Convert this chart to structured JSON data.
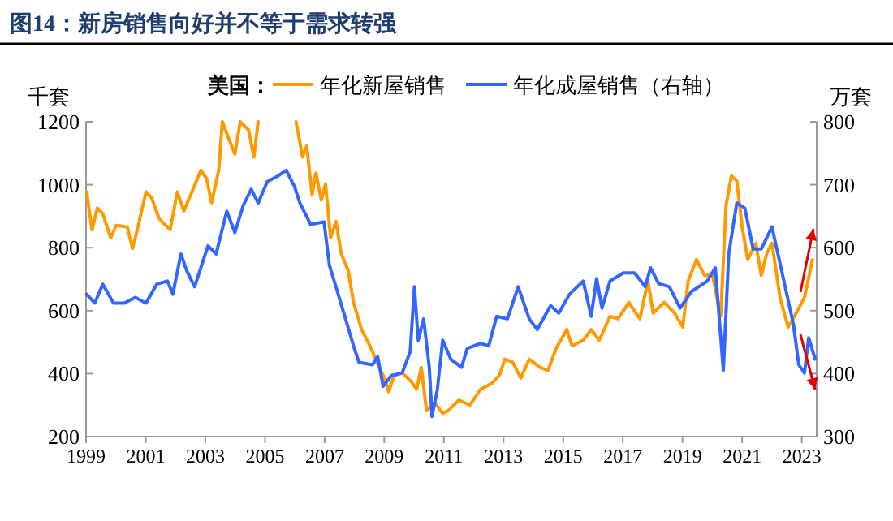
{
  "chart_data": {
    "type": "line",
    "title": "图14：新房销售向好并不等于需求转强",
    "ylabel": "千套",
    "y2label": "万套",
    "legend_title": "美国：",
    "legend": "top",
    "grid": false,
    "xlim": [
      1999,
      2023.5
    ],
    "xticks": [
      1999,
      2001,
      2003,
      2005,
      2007,
      2009,
      2011,
      2013,
      2015,
      2017,
      2019,
      2021,
      2023
    ],
    "ylim": [
      200,
      1200
    ],
    "yticks": [
      200,
      400,
      600,
      800,
      1000,
      1200
    ],
    "y2lim": [
      300,
      800
    ],
    "y2ticks": [
      300,
      400,
      500,
      600,
      700,
      800
    ],
    "series": [
      {
        "name": "年化新屋销售",
        "color": "#ff9900",
        "x": [
          1999.02,
          1999.2,
          1999.38,
          1999.56,
          1999.83,
          2000.01,
          2000.38,
          2000.56,
          2000.74,
          2001.01,
          2001.19,
          2001.46,
          2001.82,
          2002.06,
          2002.28,
          2002.55,
          2002.85,
          2003.04,
          2003.21,
          2003.45,
          2003.57,
          2003.81,
          2003.99,
          2004.17,
          2004.45,
          2004.63,
          2004.77,
          2005.41,
          2006.04,
          2006.26,
          2006.4,
          2006.58,
          2006.71,
          2006.89,
          2007.03,
          2007.2,
          2007.38,
          2007.56,
          2007.79,
          2007.97,
          2008.24,
          2008.52,
          2008.79,
          2009.01,
          2009.15,
          2009.33,
          2009.6,
          2009.88,
          2010.09,
          2010.24,
          2010.42,
          2010.69,
          2010.96,
          2011.14,
          2011.5,
          2011.87,
          2012.23,
          2012.59,
          2012.86,
          2013.04,
          2013.31,
          2013.58,
          2013.86,
          2014.22,
          2014.49,
          2014.76,
          2015.12,
          2015.3,
          2015.67,
          2015.94,
          2016.21,
          2016.57,
          2016.84,
          2017.2,
          2017.57,
          2017.84,
          2018.02,
          2018.38,
          2018.74,
          2019.01,
          2019.19,
          2019.47,
          2019.74,
          2020.01,
          2020.28,
          2020.46,
          2020.64,
          2020.82,
          2021.0,
          2021.19,
          2021.46,
          2021.64,
          2021.82,
          2022.0,
          2022.27,
          2022.54,
          2022.81,
          2023.09,
          2023.36
        ],
        "values": [
          977,
          857,
          926,
          908,
          831,
          871,
          866,
          797,
          866,
          977,
          960,
          891,
          857,
          977,
          917,
          977,
          1046,
          1020,
          943,
          1046,
          1200,
          1140,
          1097,
          1200,
          1174,
          1088,
          1200,
          null,
          1200,
          1088,
          1123,
          968,
          1037,
          951,
          1003,
          831,
          883,
          780,
          728,
          625,
          540,
          488,
          428,
          385,
          342,
          394,
          402,
          377,
          351,
          420,
          282,
          308,
          274,
          282,
          316,
          300,
          350,
          368,
          394,
          446,
          436,
          386,
          446,
          420,
          410,
          480,
          540,
          488,
          506,
          540,
          506,
          582,
          574,
          626,
          574,
          694,
          592,
          626,
          592,
          548,
          694,
          762,
          712,
          712,
          582,
          934,
          1028,
          1012,
          866,
          762,
          814,
          712,
          780,
          814,
          642,
          548,
          592,
          642,
          762
        ]
      },
      {
        "name": "年化成屋销售（右轴）",
        "color": "#3366ff",
        "axis": "y2",
        "x": [
          1999.02,
          1999.29,
          1999.56,
          1999.92,
          2000.28,
          2000.65,
          2001.01,
          2001.37,
          2001.73,
          2001.91,
          2002.18,
          2002.37,
          2002.64,
          2003.09,
          2003.36,
          2003.72,
          2003.99,
          2004.27,
          2004.54,
          2004.77,
          2005.08,
          2005.44,
          2005.71,
          2005.99,
          2006.17,
          2006.53,
          2006.98,
          2007.16,
          2007.43,
          2007.7,
          2007.97,
          2008.15,
          2008.6,
          2008.78,
          2008.96,
          2009.24,
          2009.6,
          2009.87,
          2010.01,
          2010.14,
          2010.32,
          2010.51,
          2010.6,
          2010.78,
          2010.96,
          2011.23,
          2011.59,
          2011.78,
          2012.23,
          2012.5,
          2012.77,
          2013.13,
          2013.49,
          2013.86,
          2014.13,
          2014.58,
          2014.85,
          2015.21,
          2015.67,
          2015.94,
          2016.12,
          2016.3,
          2016.57,
          2017.02,
          2017.39,
          2017.75,
          2017.93,
          2018.2,
          2018.56,
          2018.92,
          2019.29,
          2019.83,
          2020.1,
          2020.37,
          2020.55,
          2020.82,
          2021.09,
          2021.37,
          2021.64,
          2022.0,
          2022.36,
          2022.72,
          2022.9,
          2023.09,
          2023.23,
          2023.45
        ],
        "values": [
          526,
          512,
          542,
          512,
          512,
          521,
          512,
          542,
          547,
          526,
          590,
          564,
          538,
          603,
          590,
          658,
          624,
          667,
          693,
          671,
          705,
          714,
          723,
          697,
          671,
          637,
          641,
          572,
          530,
          487,
          444,
          418,
          414,
          427,
          380,
          397,
          401,
          435,
          538,
          453,
          487,
          410,
          332,
          375,
          453,
          423,
          410,
          440,
          448,
          444,
          491,
          487,
          538,
          487,
          470,
          508,
          496,
          526,
          547,
          491,
          551,
          504,
          547,
          560,
          560,
          538,
          568,
          543,
          538,
          504,
          530,
          547,
          568,
          405,
          590,
          671,
          663,
          598,
          598,
          633,
          556,
          478,
          414,
          401,
          457,
          423
        ]
      }
    ]
  }
}
